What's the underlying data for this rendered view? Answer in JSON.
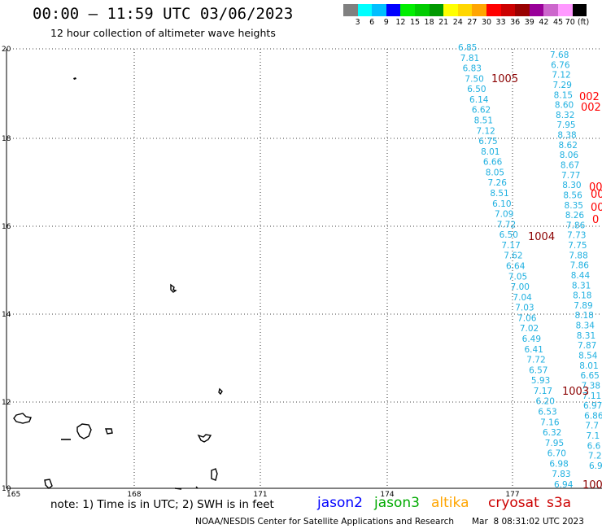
{
  "header": {
    "title": "00:00 – 11:59 UTC 03/06/2023",
    "subtitle": "12 hour collection of altimeter wave heights"
  },
  "legend": {
    "colors": [
      "#808080",
      "#00ffff",
      "#00bfff",
      "#0000ff",
      "#00ee00",
      "#00cc00",
      "#009900",
      "#ffff00",
      "#ffd700",
      "#ffa500",
      "#ff0000",
      "#cc0000",
      "#990000",
      "#990099",
      "#cc66cc",
      "#ff99ff",
      "#000000"
    ],
    "labels": [
      "3",
      "6",
      "9",
      "12",
      "15",
      "18",
      "21",
      "24",
      "27",
      "30",
      "33",
      "36",
      "39",
      "42",
      "45",
      "70 (ft)"
    ]
  },
  "axes": {
    "lat_labels": [
      "20",
      "18",
      "16",
      "14",
      "12",
      "10"
    ],
    "lon_labels": [
      "165",
      "168",
      "171",
      "174",
      "177"
    ]
  },
  "footer": {
    "note": "note: 1) Time is in UTC; 2) SWH is in feet",
    "satellites": [
      {
        "name": "jason2",
        "color": "#0000ff"
      },
      {
        "name": "jason3",
        "color": "#00aa00"
      },
      {
        "name": "altika",
        "color": "#ffa500"
      },
      {
        "name": "cryosat",
        "color": "#cc0000"
      },
      {
        "name": "s3a",
        "color": "#cc0000"
      }
    ],
    "credit": "NOAA/NESDIS Center for Satellite Applications and Research",
    "issued": "Mar  8 08:31:02 UTC 2023"
  },
  "pressure_labels": [
    {
      "text": "1005",
      "color": "#8b0000"
    },
    {
      "text": "1004",
      "color": "#8b0000"
    },
    {
      "text": "1003",
      "color": "#8b0000"
    },
    {
      "text": "002",
      "color": "#ff0000"
    },
    {
      "text": "002",
      "color": "#ff0000"
    },
    {
      "text": "00",
      "color": "#ff0000"
    },
    {
      "text": "00",
      "color": "#ff0000"
    },
    {
      "text": "00",
      "color": "#ff0000"
    },
    {
      "text": "0",
      "color": "#ff0000"
    },
    {
      "text": "100",
      "color": "#8b0000"
    }
  ],
  "track_a_values": [
    "6.85",
    "7.81",
    "6.83",
    "7.50",
    "6.50",
    "6.14",
    "6.62",
    "8.51",
    "7.12",
    "6.75",
    "8.01",
    "6.66",
    "8.05",
    "7.26",
    "8.51",
    "6.10",
    "7.09",
    "7.72",
    "6.50",
    "7.17",
    "7.62",
    "6.64",
    "7.05",
    "7.00",
    "7.04",
    "7.03",
    "7.06",
    "7.02",
    "6.49",
    "6.41",
    "7.72",
    "6.57",
    "5.93",
    "7.17",
    "6.20",
    "6.53",
    "7.16",
    "6.32",
    "7.95",
    "6.70",
    "6.98",
    "7.83",
    "6.94"
  ],
  "track_b_values": [
    "7.68",
    "6.76",
    "7.12",
    "7.29",
    "8.15",
    "8.60",
    "8.32",
    "7.95",
    "8.38",
    "8.62",
    "8.06",
    "8.67",
    "7.77",
    "8.30",
    "8.56",
    "8.35",
    "8.26",
    "7.86",
    "7.73",
    "7.75",
    "7.88",
    "7.86",
    "8.44",
    "8.31",
    "8.18",
    "7.89",
    "8.18",
    "8.34",
    "8.31",
    "7.87",
    "8.54",
    "8.01",
    "6.65",
    "7.38",
    "7.11",
    "6.97",
    "6.86",
    "7.7",
    "7.1",
    "6.6",
    "7.2",
    "6.9"
  ],
  "track_b_color": "#1e90ff",
  "track_a_color": "#1fb0e0",
  "land_color": "#000000"
}
